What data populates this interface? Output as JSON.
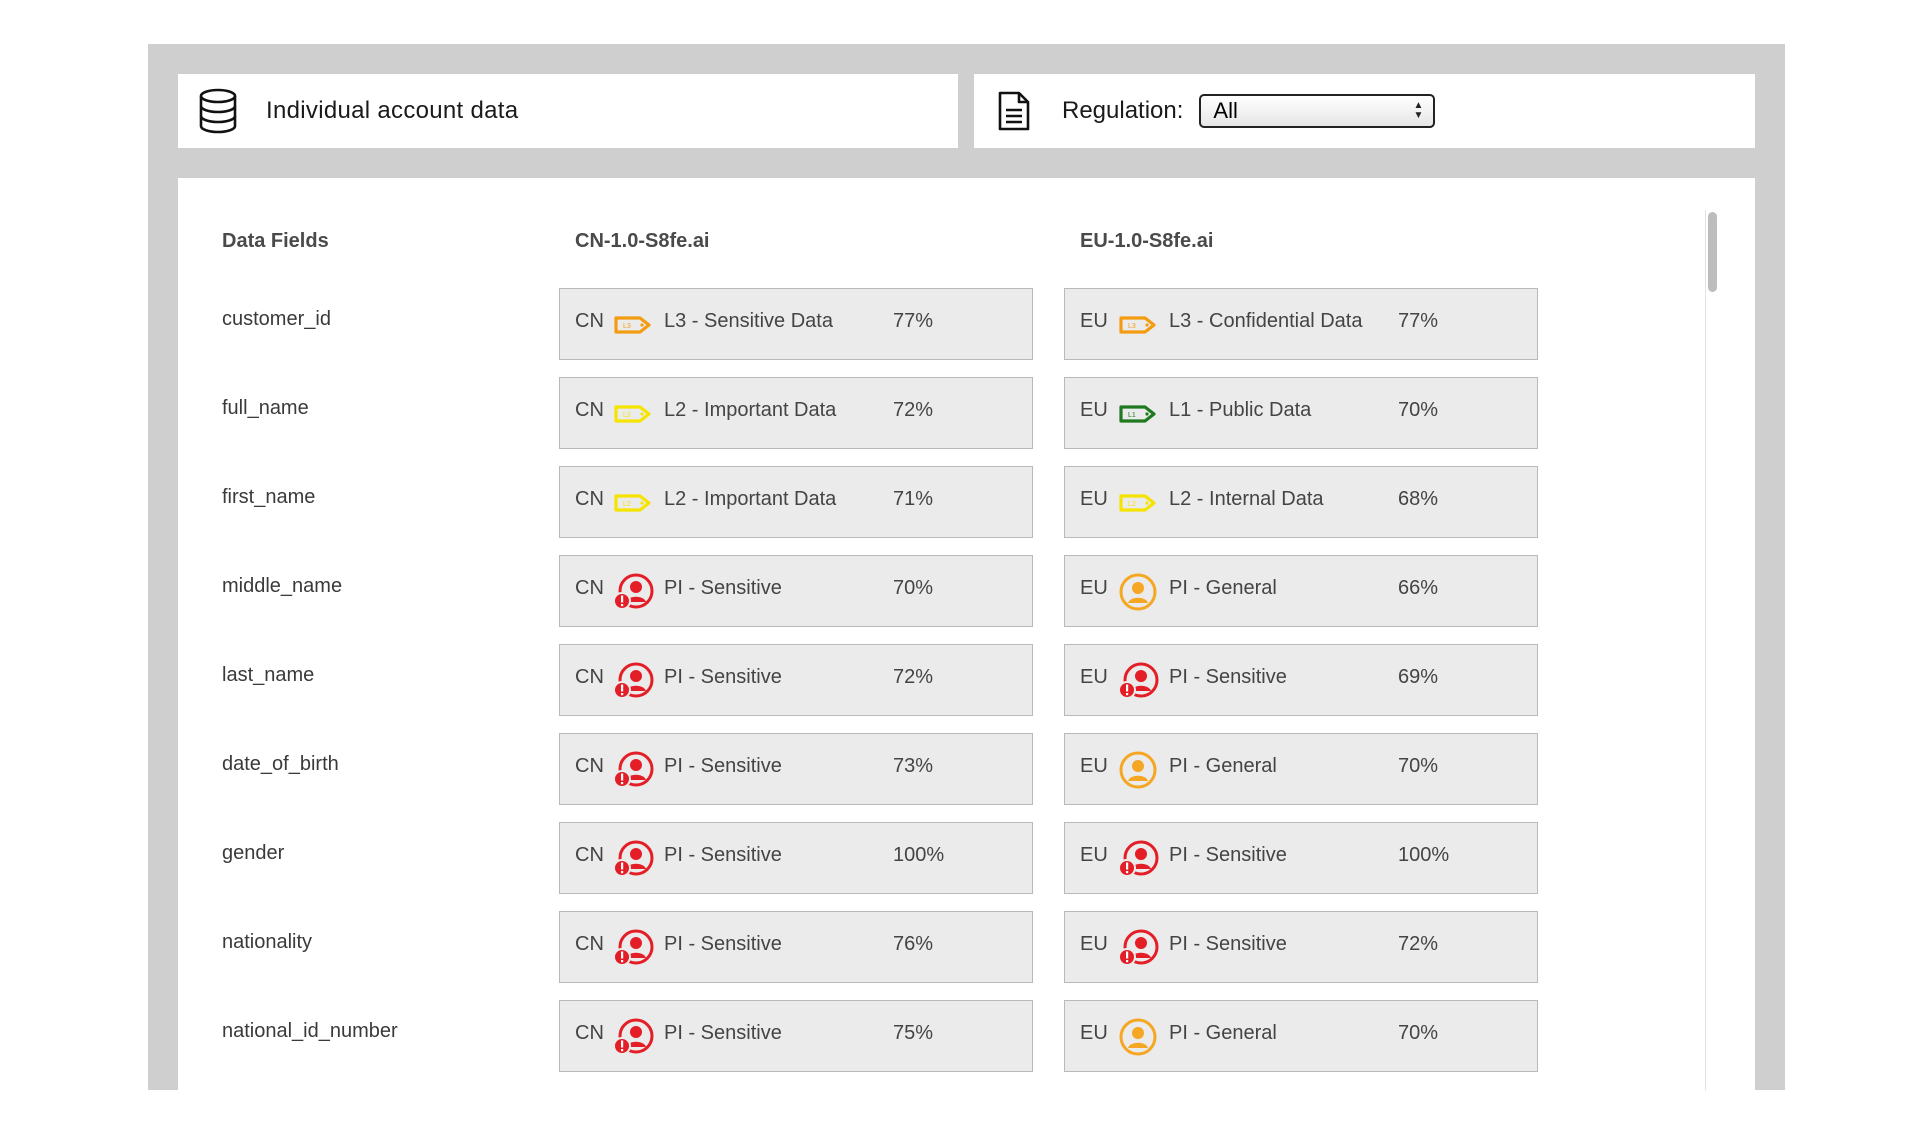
{
  "header": {
    "source_title": "Individual account data",
    "regulation_label": "Regulation:",
    "regulation_selected": "All",
    "source_icon": "database-icon",
    "regulation_icon": "document-icon"
  },
  "columns": {
    "fields": "Data Fields",
    "cn": "CN-1.0-S8fe.ai",
    "eu": "EU-1.0-S8fe.ai"
  },
  "colors": {
    "l3": "#f39c12",
    "l2": "#f5e400",
    "l1": "#1f7a1f",
    "pi_sensitive": "#e41e26",
    "pi_general": "#f5a623"
  },
  "rows": [
    {
      "field": "customer_id",
      "cn": {
        "region": "CN",
        "icon": "tag-l3-icon",
        "category": "L3 - Sensitive Data",
        "pct": "77%"
      },
      "eu": {
        "region": "EU",
        "icon": "tag-l3-icon",
        "category": "L3 - Confidential Data",
        "pct": "77%"
      }
    },
    {
      "field": "full_name",
      "cn": {
        "region": "CN",
        "icon": "tag-l2-icon",
        "category": "L2 - Important Data",
        "pct": "72%"
      },
      "eu": {
        "region": "EU",
        "icon": "tag-l1-icon",
        "category": "L1 - Public Data",
        "pct": "70%"
      }
    },
    {
      "field": "first_name",
      "cn": {
        "region": "CN",
        "icon": "tag-l2-icon",
        "category": "L2 - Important Data",
        "pct": "71%"
      },
      "eu": {
        "region": "EU",
        "icon": "tag-l2-icon",
        "category": "L2 - Internal Data",
        "pct": "68%"
      }
    },
    {
      "field": "middle_name",
      "cn": {
        "region": "CN",
        "icon": "pi-sensitive-icon",
        "category": "PI - Sensitive",
        "pct": "70%"
      },
      "eu": {
        "region": "EU",
        "icon": "pi-general-icon",
        "category": "PI - General",
        "pct": "66%"
      }
    },
    {
      "field": "last_name",
      "cn": {
        "region": "CN",
        "icon": "pi-sensitive-icon",
        "category": "PI - Sensitive",
        "pct": "72%"
      },
      "eu": {
        "region": "EU",
        "icon": "pi-sensitive-icon",
        "category": "PI - Sensitive",
        "pct": "69%"
      }
    },
    {
      "field": "date_of_birth",
      "cn": {
        "region": "CN",
        "icon": "pi-sensitive-icon",
        "category": "PI - Sensitive",
        "pct": "73%"
      },
      "eu": {
        "region": "EU",
        "icon": "pi-general-icon",
        "category": "PI - General",
        "pct": "70%"
      }
    },
    {
      "field": "gender",
      "cn": {
        "region": "CN",
        "icon": "pi-sensitive-icon",
        "category": "PI - Sensitive",
        "pct": "100%"
      },
      "eu": {
        "region": "EU",
        "icon": "pi-sensitive-icon",
        "category": "PI - Sensitive",
        "pct": "100%"
      }
    },
    {
      "field": "nationality",
      "cn": {
        "region": "CN",
        "icon": "pi-sensitive-icon",
        "category": "PI - Sensitive",
        "pct": "76%"
      },
      "eu": {
        "region": "EU",
        "icon": "pi-sensitive-icon",
        "category": "PI - Sensitive",
        "pct": "72%"
      }
    },
    {
      "field": "national_id_number",
      "cn": {
        "region": "CN",
        "icon": "pi-sensitive-icon",
        "category": "PI - Sensitive",
        "pct": "75%"
      },
      "eu": {
        "region": "EU",
        "icon": "pi-general-icon",
        "category": "PI - General",
        "pct": "70%"
      }
    }
  ]
}
